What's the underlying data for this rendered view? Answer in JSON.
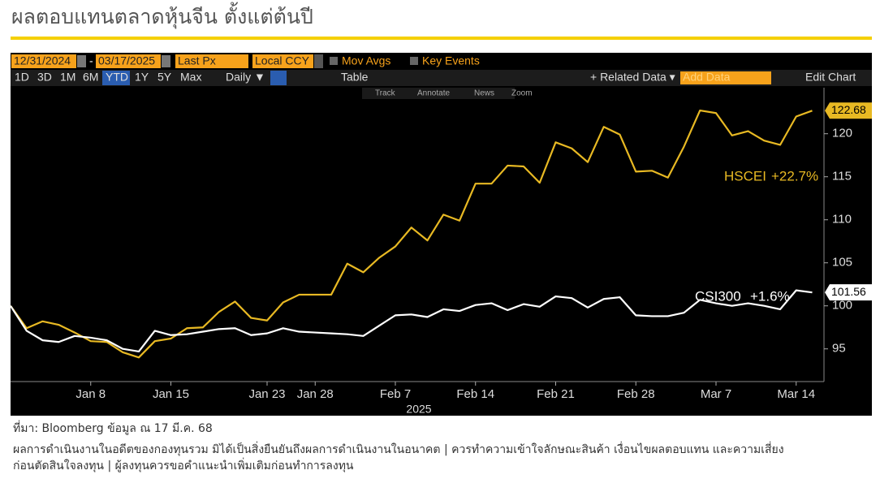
{
  "header": {
    "title": "ผลตอบแทนตลาดหุ้นจีน ตั้งแต่ต้นปี"
  },
  "toolbar": {
    "start_date": "12/31/2024",
    "separator": "-",
    "end_date": "03/17/2025",
    "field": "Last Px",
    "currency": "Local CCY",
    "mov_avgs": "Mov Avgs",
    "key_events": "Key Events",
    "periods": [
      "1D",
      "3D",
      "1M",
      "6M",
      "YTD",
      "1Y",
      "5Y",
      "Max"
    ],
    "frequency": "Daily ▼",
    "table": "Table",
    "related_data": "+ Related Data ▾",
    "add_data": "Add Data",
    "edit_chart": "Edit Chart",
    "tools": [
      "Track",
      "Annotate",
      "News",
      "Zoom"
    ]
  },
  "chart_data": {
    "type": "line",
    "x_label": "2025",
    "categories": [
      null,
      null,
      null,
      null,
      null,
      "Jan 8",
      null,
      null,
      null,
      null,
      "Jan 15",
      null,
      null,
      null,
      null,
      null,
      "Jan 23",
      null,
      null,
      "Jan 28",
      null,
      null,
      null,
      null,
      "Feb 7",
      null,
      null,
      null,
      null,
      "Feb 14",
      null,
      null,
      null,
      null,
      "Feb 21",
      null,
      null,
      null,
      null,
      "Feb 28",
      null,
      null,
      null,
      null,
      "Mar 7",
      null,
      null,
      null,
      null,
      "Mar 14",
      null
    ],
    "series": [
      {
        "name": "HSCEI",
        "change": "+22.7%",
        "color": "#e8b923",
        "values": [
          100,
          97.4,
          98.2,
          97.8,
          96.9,
          95.9,
          95.8,
          94.6,
          94.0,
          95.9,
          96.2,
          97.4,
          97.5,
          99.3,
          100.5,
          98.6,
          98.3,
          100.4,
          101.3,
          101.3,
          101.3,
          104.9,
          103.9,
          105.6,
          106.9,
          109.1,
          107.6,
          110.6,
          109.9,
          114.2,
          114.2,
          116.3,
          116.2,
          114.3,
          119.0,
          118.3,
          116.7,
          120.8,
          119.9,
          115.6,
          115.7,
          114.9,
          118.5,
          122.7,
          122.4,
          119.8,
          120.3,
          119.2,
          118.7,
          122.0,
          122.68
        ]
      },
      {
        "name": "CSI300",
        "change": "+1.6%",
        "color": "#ffffff",
        "values": [
          100,
          97.1,
          96.0,
          95.8,
          96.5,
          96.3,
          96.0,
          95.0,
          94.7,
          97.1,
          96.6,
          96.7,
          97.0,
          97.3,
          97.4,
          96.6,
          96.8,
          97.4,
          97.0,
          96.9,
          96.8,
          96.7,
          96.5,
          97.7,
          98.9,
          99.0,
          98.7,
          99.6,
          99.4,
          100.1,
          100.3,
          99.5,
          100.2,
          99.9,
          101.1,
          100.9,
          99.8,
          100.8,
          101.0,
          98.9,
          98.8,
          98.8,
          99.2,
          100.7,
          100.3,
          100.0,
          100.3,
          100.0,
          99.6,
          101.8,
          101.56
        ]
      }
    ],
    "ylim": [
      91.2,
      125.35
    ],
    "yticks": [
      95,
      100,
      105,
      110,
      115,
      120
    ],
    "grid": false
  },
  "footer": {
    "source": "ที่มา: Bloomberg ข้อมูล ณ 17 มี.ค. 68",
    "disclaimer": [
      "ผลการดำเนินงานในอดีตของกองทุนรวม มิได้เป็นสิ่งยืนยันถึงผลการดำเนินงานในอนาคต | ควรทำความเข้าใจลักษณะสินค้า เงื่อนไขผลตอบแทน และความเสี่ยง",
      "ก่อนตัดสินใจลงทุน |  ผู้ลงทุนควรขอคำแนะนำเพิ่มเติมก่อนทำการลงทุน"
    ]
  }
}
